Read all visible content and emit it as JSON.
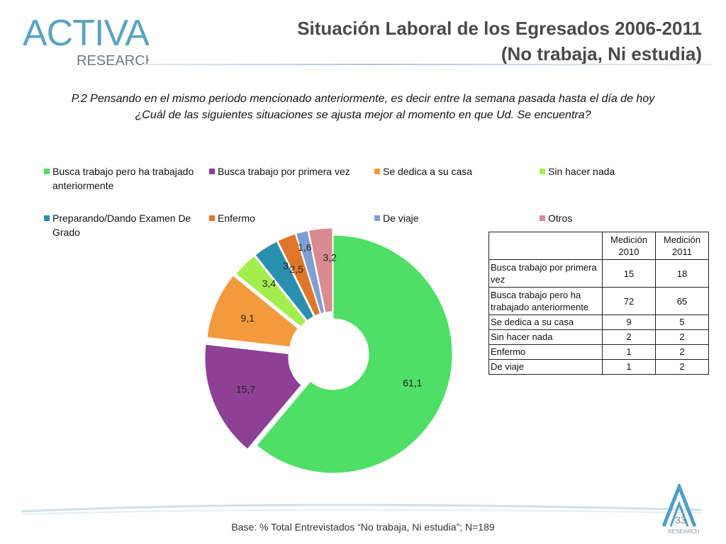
{
  "logo": {
    "main": "ACTIVA",
    "sub": "RESEARCH"
  },
  "title": {
    "line1": "Situación Laboral de los Egresados 2006-2011",
    "line2": "(No trabaja, Ni estudia)"
  },
  "question": {
    "line1": "P.2  Pensando en el mismo periodo mencionado anteriormente, es decir entre la semana pasada hasta el día de hoy",
    "line2": "¿Cuál de las siguientes situaciones se ajusta mejor al momento en que Ud. Se encuentra?"
  },
  "chart_data": {
    "type": "pie",
    "variant": "exploded-doughnut",
    "title": "",
    "legend_position": "top",
    "categories": [
      "Busca trabajo pero ha trabajado anteriormente",
      "Busca trabajo por primera vez",
      "Se dedica a su casa",
      "Sin hacer nada",
      "Preparando/Dando Examen De Grado",
      "Enfermo",
      "De viaje",
      "Otros"
    ],
    "values": [
      61.1,
      15.7,
      9.1,
      3.4,
      3.4,
      2.5,
      1.6,
      3.2
    ],
    "data_labels": [
      "61,1",
      "15,7",
      "9,1",
      "3,4",
      "3,4",
      "2,5",
      "1,6",
      "3,2"
    ],
    "colors": [
      "#4fde66",
      "#8e3f96",
      "#f39a3e",
      "#a3ee4c",
      "#2b8fb0",
      "#e0762a",
      "#7f9fd3",
      "#d98b8f"
    ]
  },
  "table": {
    "headers": [
      "",
      "Medición 2010",
      "Medición 2011"
    ],
    "rows": [
      {
        "label": "Busca trabajo por primera vez",
        "v2010": "15",
        "v2011": "18"
      },
      {
        "label": "Busca trabajo pero ha trabajado anteriormente",
        "v2010": "72",
        "v2011": "65"
      },
      {
        "label": "Se dedica a su casa",
        "v2010": "9",
        "v2011": "5"
      },
      {
        "label": "Sin hacer nada",
        "v2010": "2",
        "v2011": "2"
      },
      {
        "label": "Enfermo",
        "v2010": "1",
        "v2011": "2"
      },
      {
        "label": "De viaje",
        "v2010": "1",
        "v2011": "2"
      }
    ]
  },
  "footer": {
    "base_note": "Base: % Total Entrevistados “No trabaja, Ni estudia”; N=189",
    "page_number": "33",
    "logo_sub": "RESEARCH"
  }
}
